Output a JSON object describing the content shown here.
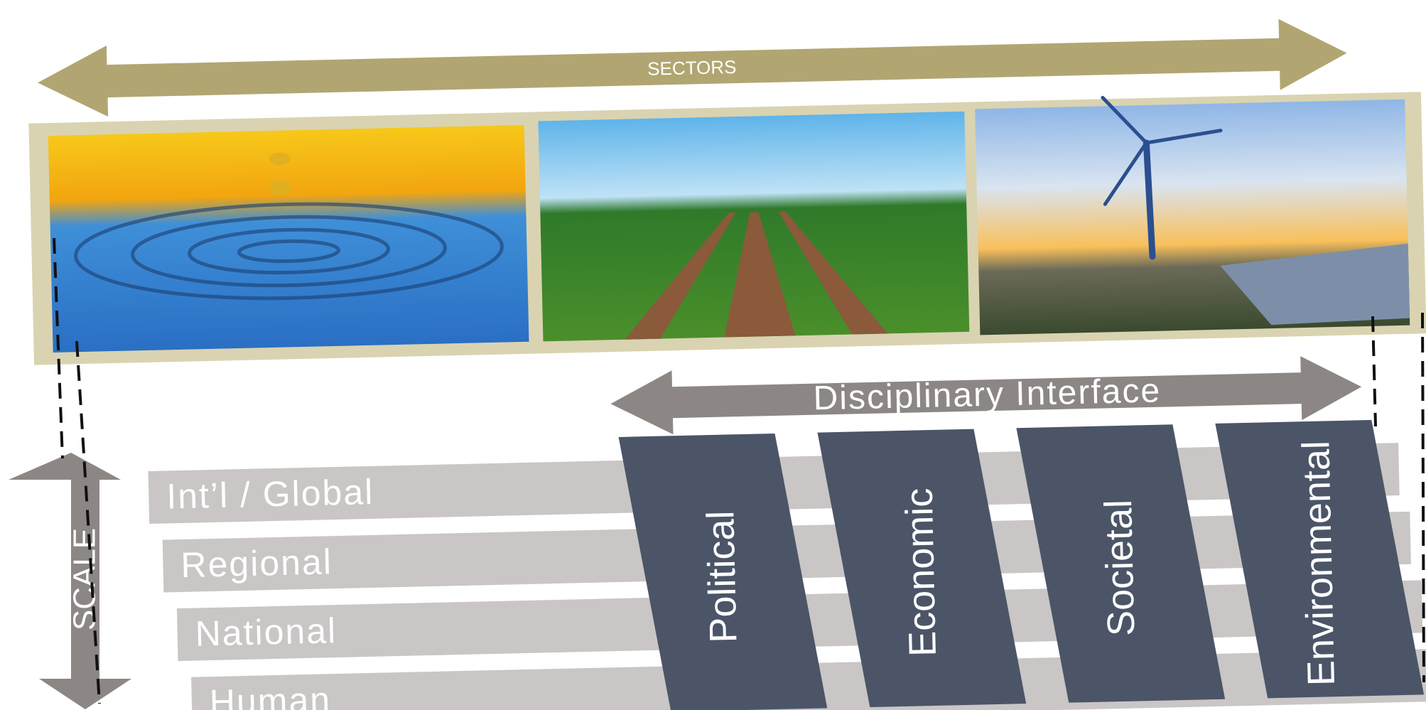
{
  "sectors_label": "SECTORS",
  "scale_label": "SCALE",
  "interface_label": "Disciplinary Interface",
  "levels": [
    "Int’l / Global",
    "Regional",
    "National",
    "Human"
  ],
  "disciplines": [
    "Political",
    "Economic",
    "Societal",
    "Environmental"
  ]
}
